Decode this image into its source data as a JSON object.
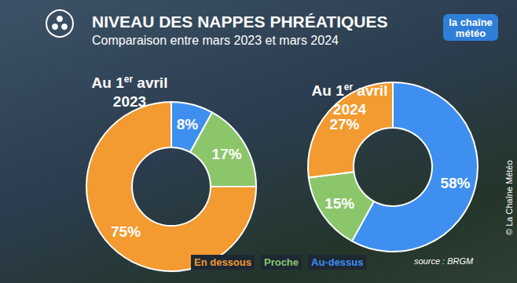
{
  "title": "NIVEAU DES NAPPES PHRÉATIQUES",
  "subtitle": "Comparaison entre mars 2023 et mars 2024",
  "logo": "la chaîne\nmétéo",
  "source": "source : BRGM",
  "credit": "© La Chaîne Météo",
  "chart_data": [
    {
      "type": "pie",
      "title": "Au 1er avril\n2023",
      "categories": [
        "Au-dessus",
        "Proche",
        "En dessous"
      ],
      "values": [
        8,
        17,
        75
      ],
      "value_labels": [
        "8%",
        "17%",
        "75%"
      ],
      "colors": [
        "#3f8ff0",
        "#8cc66a",
        "#f39a30"
      ],
      "data_labels": true,
      "legend": "bottom"
    },
    {
      "type": "pie",
      "title": "Au 1er avril\n2024",
      "categories": [
        "Au-dessus",
        "Proche",
        "En dessous"
      ],
      "values": [
        58,
        15,
        27
      ],
      "value_labels": [
        "58%",
        "15%",
        "27%"
      ],
      "colors": [
        "#3f8ff0",
        "#8cc66a",
        "#f39a30"
      ],
      "data_labels": true
    }
  ]
}
